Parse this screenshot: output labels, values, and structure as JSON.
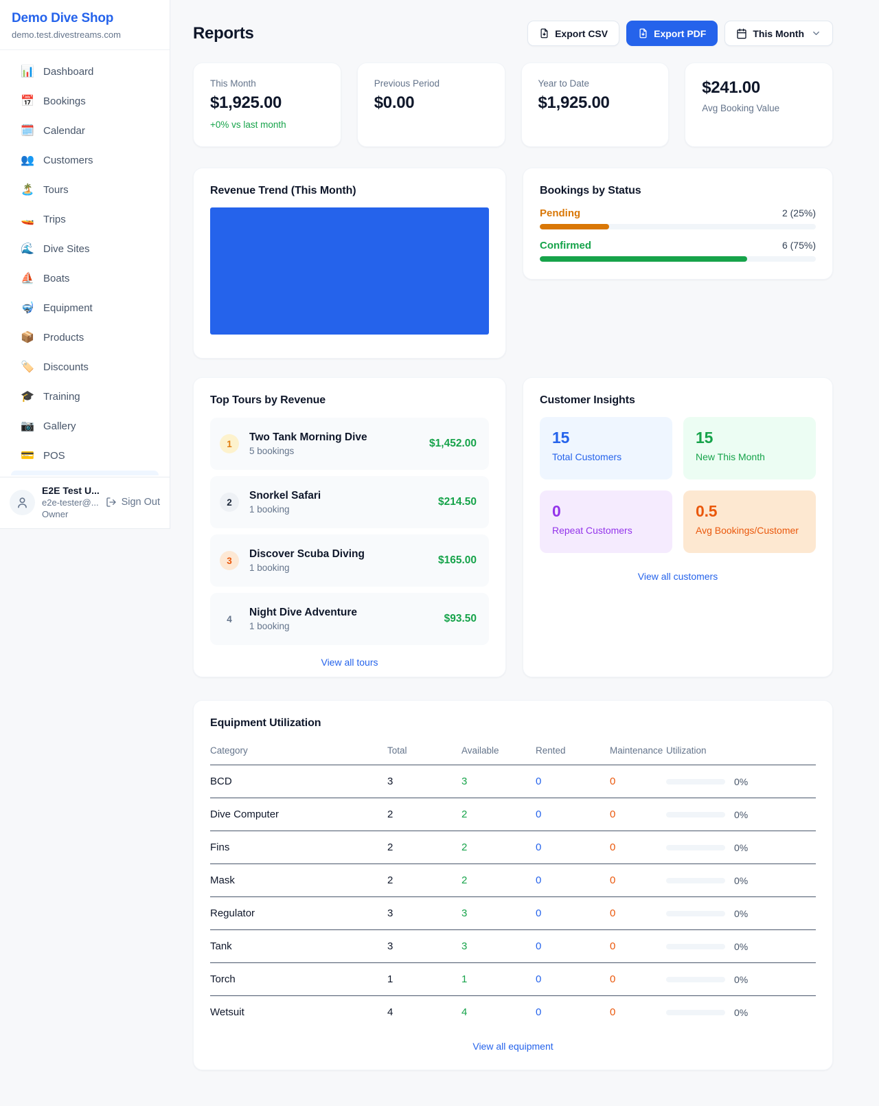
{
  "colors": {
    "accent_blue": "#2563eb",
    "green": "#16a34a",
    "pending_orange": "#d97706",
    "maintenance_orange": "#ea580c",
    "purple": "#9333ea",
    "chart_fill": "#2563eb"
  },
  "sidebar": {
    "shop_name": "Demo Dive Shop",
    "shop_domain": "demo.test.divestreams.com",
    "nav": [
      {
        "label": "Dashboard",
        "icon": "📊"
      },
      {
        "label": "Bookings",
        "icon": "📅"
      },
      {
        "label": "Calendar",
        "icon": "🗓️"
      },
      {
        "label": "Customers",
        "icon": "👥"
      },
      {
        "label": "Tours",
        "icon": "🏝️"
      },
      {
        "label": "Trips",
        "icon": "🚤"
      },
      {
        "label": "Dive Sites",
        "icon": "🌊"
      },
      {
        "label": "Boats",
        "icon": "⛵"
      },
      {
        "label": "Equipment",
        "icon": "🤿"
      },
      {
        "label": "Products",
        "icon": "📦"
      },
      {
        "label": "Discounts",
        "icon": "🏷️"
      },
      {
        "label": "Training",
        "icon": "🎓"
      },
      {
        "label": "Gallery",
        "icon": "📷"
      },
      {
        "label": "POS",
        "icon": "💳"
      }
    ],
    "user": {
      "name": "E2E Test U...",
      "email": "e2e-tester@...",
      "role": "Owner",
      "sign_out_label": "Sign Out"
    }
  },
  "header": {
    "title": "Reports",
    "export_csv_label": "Export CSV",
    "export_pdf_label": "Export PDF",
    "period_selected": "This Month"
  },
  "stats": [
    {
      "label": "This Month",
      "value": "$1,925.00",
      "delta": "+0% vs last month"
    },
    {
      "label": "Previous Period",
      "value": "$0.00"
    },
    {
      "label": "Year to Date",
      "value": "$1,925.00"
    },
    {
      "label": "Avg Booking Value",
      "value": "$241.00"
    }
  ],
  "revenue_trend": {
    "title": "Revenue Trend (This Month)"
  },
  "bookings_by_status": {
    "title": "Bookings by Status",
    "items": [
      {
        "label": "Pending",
        "count_text": "2 (25%)",
        "pct": 25,
        "color": "#d97706"
      },
      {
        "label": "Confirmed",
        "count_text": "6 (75%)",
        "pct": 75,
        "color": "#16a34a"
      }
    ]
  },
  "top_tours": {
    "title": "Top Tours by Revenue",
    "view_all_label": "View all tours",
    "items": [
      {
        "rank": "1",
        "name": "Two Tank Morning Dive",
        "bookings": "5 bookings",
        "revenue": "$1,452.00"
      },
      {
        "rank": "2",
        "name": "Snorkel Safari",
        "bookings": "1 booking",
        "revenue": "$214.50"
      },
      {
        "rank": "3",
        "name": "Discover Scuba Diving",
        "bookings": "1 booking",
        "revenue": "$165.00"
      },
      {
        "rank": "4",
        "name": "Night Dive Adventure",
        "bookings": "1 booking",
        "revenue": "$93.50"
      }
    ]
  },
  "customer_insights": {
    "title": "Customer Insights",
    "view_all_label": "View all customers",
    "tiles": [
      {
        "value": "15",
        "label": "Total Customers"
      },
      {
        "value": "15",
        "label": "New This Month"
      },
      {
        "value": "0",
        "label": "Repeat Customers"
      },
      {
        "value": "0.5",
        "label": "Avg Bookings/Customer"
      }
    ]
  },
  "equipment": {
    "title": "Equipment Utilization",
    "view_all_label": "View all equipment",
    "columns": [
      "Category",
      "Total",
      "Available",
      "Rented",
      "Maintenance",
      "Utilization"
    ],
    "rows": [
      {
        "category": "BCD",
        "total": "3",
        "available": "3",
        "rented": "0",
        "maintenance": "0",
        "utilization": "0%",
        "utilization_pct": 0
      },
      {
        "category": "Dive Computer",
        "total": "2",
        "available": "2",
        "rented": "0",
        "maintenance": "0",
        "utilization": "0%",
        "utilization_pct": 0
      },
      {
        "category": "Fins",
        "total": "2",
        "available": "2",
        "rented": "0",
        "maintenance": "0",
        "utilization": "0%",
        "utilization_pct": 0
      },
      {
        "category": "Mask",
        "total": "2",
        "available": "2",
        "rented": "0",
        "maintenance": "0",
        "utilization": "0%",
        "utilization_pct": 0
      },
      {
        "category": "Regulator",
        "total": "3",
        "available": "3",
        "rented": "0",
        "maintenance": "0",
        "utilization": "0%",
        "utilization_pct": 0
      },
      {
        "category": "Tank",
        "total": "3",
        "available": "3",
        "rented": "0",
        "maintenance": "0",
        "utilization": "0%",
        "utilization_pct": 0
      },
      {
        "category": "Torch",
        "total": "1",
        "available": "1",
        "rented": "0",
        "maintenance": "0",
        "utilization": "0%",
        "utilization_pct": 0
      },
      {
        "category": "Wetsuit",
        "total": "4",
        "available": "4",
        "rented": "0",
        "maintenance": "0",
        "utilization": "0%",
        "utilization_pct": 0
      }
    ]
  }
}
